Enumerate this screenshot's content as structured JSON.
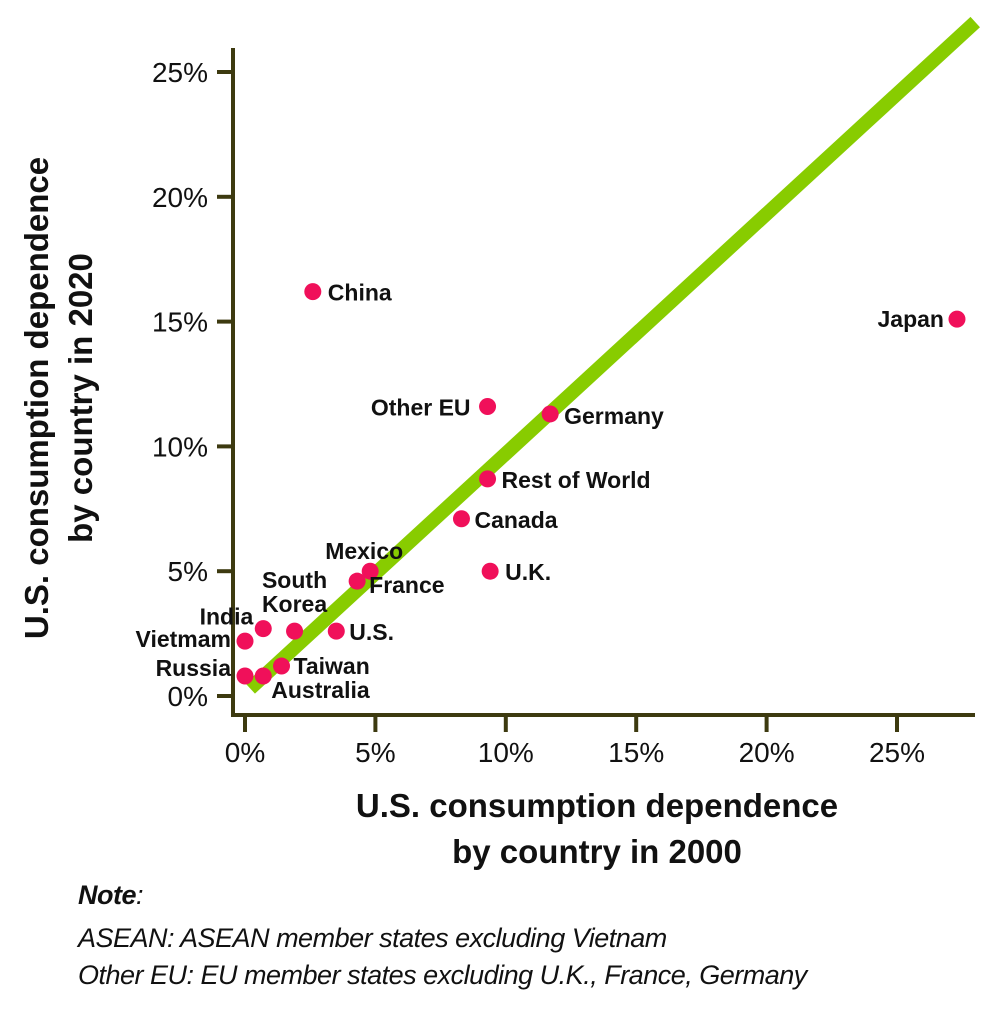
{
  "chart_data": {
    "type": "scatter",
    "xlabel": [
      "U.S. consumption dependence",
      "by country in 2000"
    ],
    "ylabel": [
      "U.S. consumption dependence",
      "by country in 2020"
    ],
    "xlim": [
      -0.5,
      28
    ],
    "ylim": [
      -0.5,
      27
    ],
    "xticks": [
      0,
      5,
      10,
      15,
      20,
      25
    ],
    "yticks": [
      0,
      5,
      10,
      15,
      20,
      25
    ],
    "xtick_labels": [
      "0%",
      "5%",
      "10%",
      "15%",
      "20%",
      "25%"
    ],
    "ytick_labels": [
      "0%",
      "5%",
      "10%",
      "15%",
      "20%",
      "25%"
    ],
    "grid": false,
    "point_color": "#f0105a",
    "line_color": "#88cc00",
    "axis_color": "#3d3a10",
    "reference_line": {
      "x": [
        0.2,
        28
      ],
      "y": [
        0.3,
        27
      ]
    },
    "points": [
      {
        "label": "China",
        "x": 2.6,
        "y": 16.2
      },
      {
        "label": "Japan",
        "x": 27.3,
        "y": 15.1
      },
      {
        "label": "Other EU",
        "x": 9.3,
        "y": 11.6
      },
      {
        "label": "Germany",
        "x": 11.7,
        "y": 11.3
      },
      {
        "label": "Rest of World",
        "x": 9.3,
        "y": 8.7
      },
      {
        "label": "Canada",
        "x": 8.3,
        "y": 7.1
      },
      {
        "label": "U.K.",
        "x": 9.4,
        "y": 5.0
      },
      {
        "label": "Mexico",
        "x": 4.8,
        "y": 5.0
      },
      {
        "label": "France",
        "x": 4.3,
        "y": 4.6
      },
      {
        "label": "South Korea",
        "x": 1.9,
        "y": 2.6
      },
      {
        "label": "U.S.",
        "x": 3.5,
        "y": 2.6
      },
      {
        "label": "India",
        "x": 0.7,
        "y": 2.7
      },
      {
        "label": "Vietmam",
        "x": 0.0,
        "y": 2.2
      },
      {
        "label": "Russia",
        "x": 0.0,
        "y": 0.8
      },
      {
        "label": "Australia",
        "x": 0.7,
        "y": 0.8
      },
      {
        "label": "Taiwan",
        "x": 1.4,
        "y": 1.2
      }
    ]
  },
  "note": {
    "title": "Note",
    "lines": [
      "ASEAN: ASEAN member states excluding Vietnam",
      "Other EU: EU member states excluding U.K., France, Germany"
    ]
  }
}
